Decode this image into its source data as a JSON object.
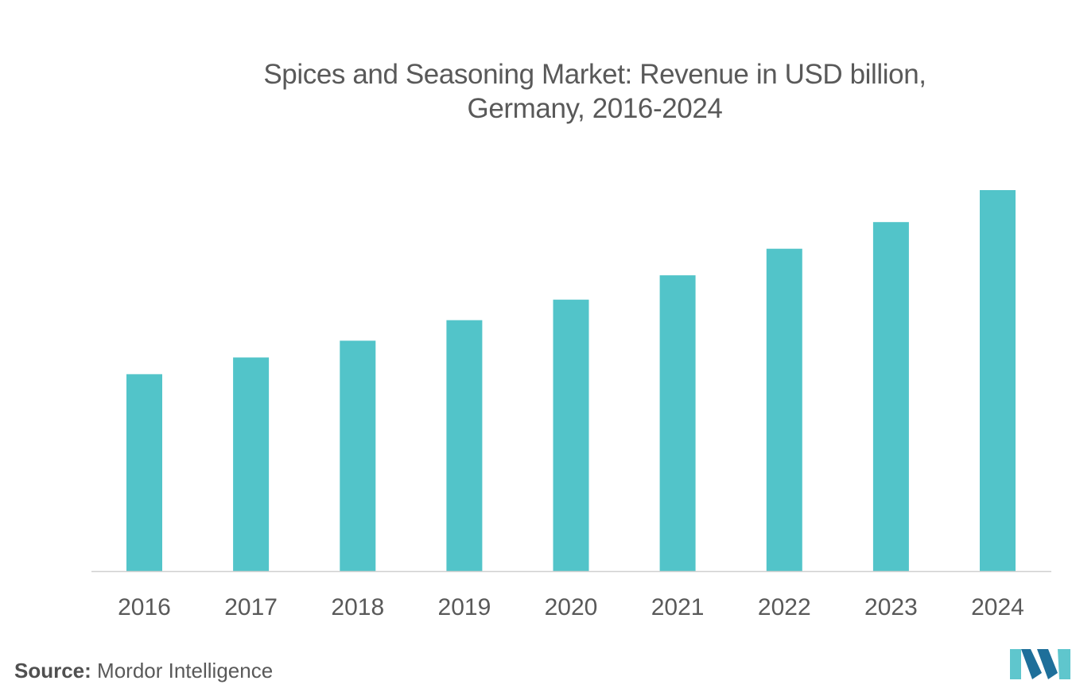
{
  "chart_data": {
    "type": "bar",
    "title_lines": [
      "Spices and Seasoning Market: Revenue in USD billion,",
      "Germany, 2016-2024"
    ],
    "categories": [
      "2016",
      "2017",
      "2018",
      "2019",
      "2020",
      "2021",
      "2022",
      "2023",
      "2024"
    ],
    "values": [
      2.59,
      2.81,
      3.03,
      3.3,
      3.57,
      3.89,
      4.24,
      4.59,
      5.01
    ],
    "xlabel": "",
    "ylabel": "",
    "ylim": [
      0,
      5.0
    ],
    "grid": false,
    "legend": "none",
    "bar_color": "#52C4C9",
    "axis_color": "#d0d0d0",
    "tick_label_color": "#595959"
  },
  "source": {
    "label": "Source:",
    "text": "Mordor Intelligence"
  },
  "logo": {
    "icon": "mordor-intelligence-logo-icon",
    "color_light": "#5fc6cd",
    "color_dark": "#1e6f9a"
  }
}
